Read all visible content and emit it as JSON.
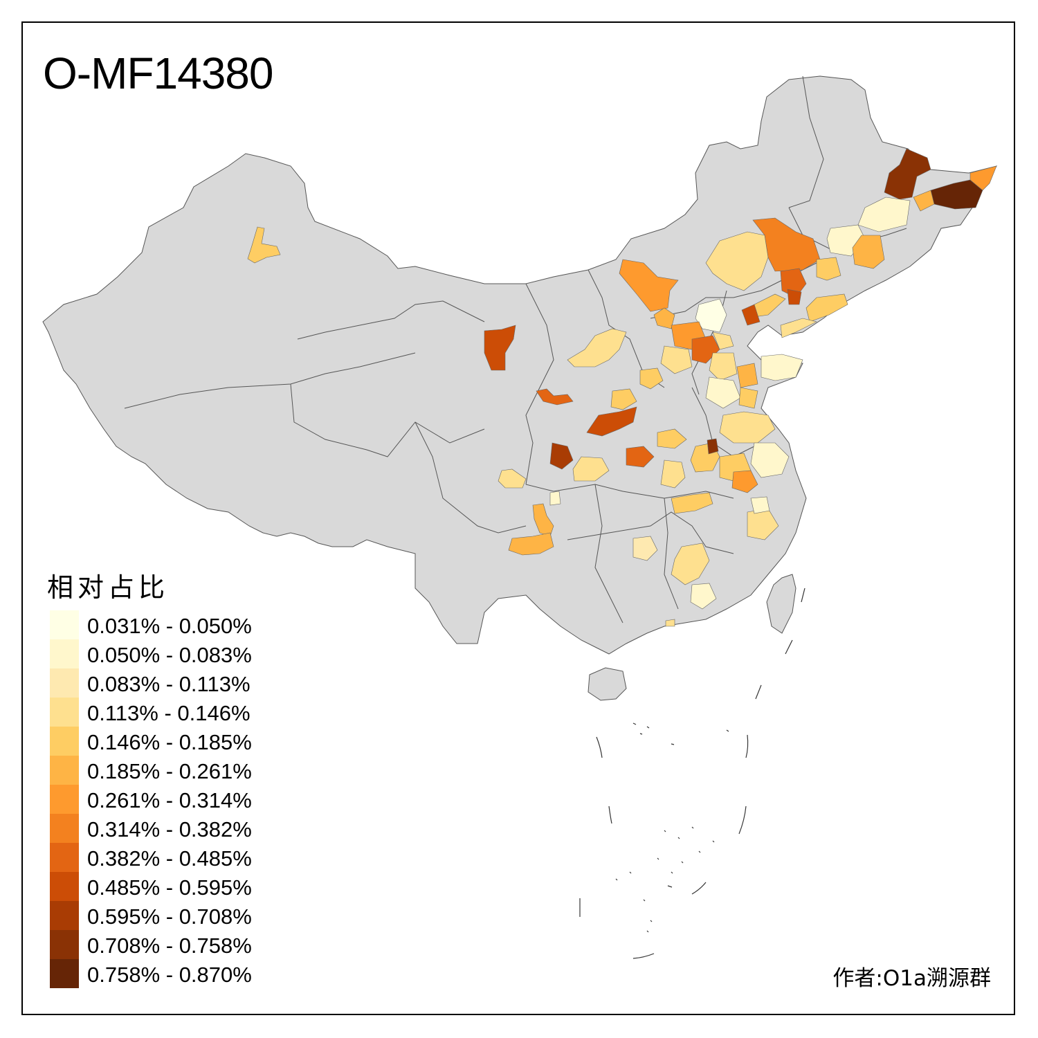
{
  "title": "O-MF14380",
  "legend": {
    "title": "相对占比",
    "items": [
      {
        "label": "0.031% - 0.050%",
        "color": "#ffffe5"
      },
      {
        "label": "0.050% - 0.083%",
        "color": "#fff7cc"
      },
      {
        "label": "0.083% - 0.113%",
        "color": "#fee9b0"
      },
      {
        "label": "0.113% - 0.146%",
        "color": "#fee08f"
      },
      {
        "label": "0.146% - 0.185%",
        "color": "#fecd63"
      },
      {
        "label": "0.185% - 0.261%",
        "color": "#feb445"
      },
      {
        "label": "0.261% - 0.314%",
        "color": "#fe9a2e"
      },
      {
        "label": "0.314% - 0.382%",
        "color": "#f3811f"
      },
      {
        "label": "0.382% - 0.485%",
        "color": "#e36513"
      },
      {
        "label": "0.485% - 0.595%",
        "color": "#cc4d06"
      },
      {
        "label": "0.595% - 0.708%",
        "color": "#a93c04"
      },
      {
        "label": "0.708% - 0.758%",
        "color": "#8a3205"
      },
      {
        "label": "0.758% - 0.870%",
        "color": "#662506"
      }
    ]
  },
  "credit": "作者:O1a溯源群",
  "colors": {
    "base_land": "#d9d9d9",
    "border": "#4d4d4d",
    "frame": "#000000"
  }
}
